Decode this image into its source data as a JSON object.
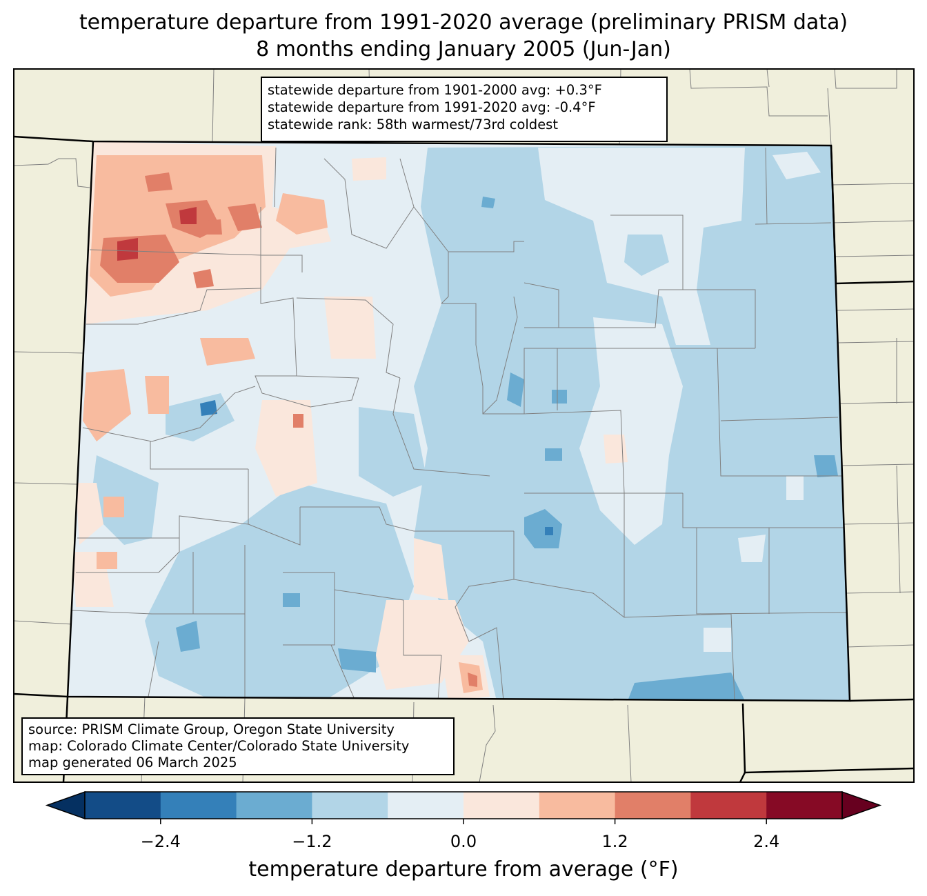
{
  "title": {
    "line1": "temperature departure from 1991-2020 average (preliminary PRISM data)",
    "line2": "8 months ending January 2005 (Jun-Jan)"
  },
  "stats": {
    "line1": "statewide departure from 1901-2000 avg: +0.3°F",
    "line2": "statewide departure from 1991-2020 avg: -0.4°F",
    "line3": "statewide rank: 58th warmest/73rd coldest"
  },
  "source": {
    "line1": "source: PRISM Climate Group, Oregon State University",
    "line2": "map: Colorado Climate Center/Colorado State University",
    "line3": "map generated 06 March 2025"
  },
  "colorbar": {
    "label": "temperature departure from average (°F)",
    "ticks": [
      "−2.4",
      "−1.2",
      "0.0",
      "1.2",
      "2.4"
    ],
    "tick_values": [
      -2.4,
      -1.2,
      0.0,
      1.2,
      2.4
    ],
    "bins": [
      -3.0,
      -2.4,
      -1.8,
      -1.2,
      -0.6,
      0.0,
      0.6,
      1.2,
      1.8,
      2.4,
      3.0
    ],
    "colors": [
      "#053061",
      "#134c87",
      "#3480b9",
      "#6bacd1",
      "#b2d5e7",
      "#e4eef4",
      "#fae7dc",
      "#f8bb9f",
      "#e17f68",
      "#c0393d",
      "#860a25",
      "#67001f"
    ]
  },
  "map_colors": {
    "land": "#f0efdc",
    "border": "#000000",
    "county": "#808080"
  }
}
